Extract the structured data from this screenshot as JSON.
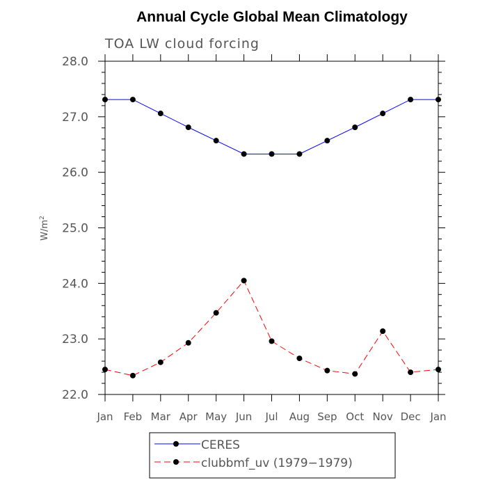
{
  "chart_data": {
    "type": "line",
    "title": "Annual Cycle Global Mean Climatology",
    "subtitle": "TOA LW cloud forcing",
    "xlabel": "",
    "ylabel": "W/m",
    "ylabel_superscript": "2",
    "categories": [
      "Jan",
      "Feb",
      "Mar",
      "Apr",
      "May",
      "Jun",
      "Jul",
      "Aug",
      "Sep",
      "Oct",
      "Nov",
      "Dec",
      "Jan"
    ],
    "ylim": [
      22.0,
      28.0
    ],
    "yticks": [
      "22.0",
      "23.0",
      "24.0",
      "25.0",
      "26.0",
      "27.0",
      "28.0"
    ],
    "ytick_values": [
      22.0,
      23.0,
      24.0,
      25.0,
      26.0,
      27.0,
      28.0
    ],
    "grid": false,
    "legend_position": "bottom-center",
    "series": [
      {
        "name": "CERES",
        "color": "#0000ff",
        "style": "solid",
        "values": [
          27.31,
          27.31,
          27.06,
          26.81,
          26.57,
          26.33,
          26.33,
          26.33,
          26.57,
          26.81,
          27.06,
          27.31,
          27.31
        ]
      },
      {
        "name": "clubbmf_uv (1979−1979)",
        "color": "#ff0000",
        "style": "dashed",
        "values": [
          22.45,
          22.34,
          22.58,
          22.93,
          23.47,
          24.05,
          22.96,
          22.65,
          22.43,
          22.37,
          23.14,
          22.4,
          22.45
        ]
      }
    ]
  }
}
